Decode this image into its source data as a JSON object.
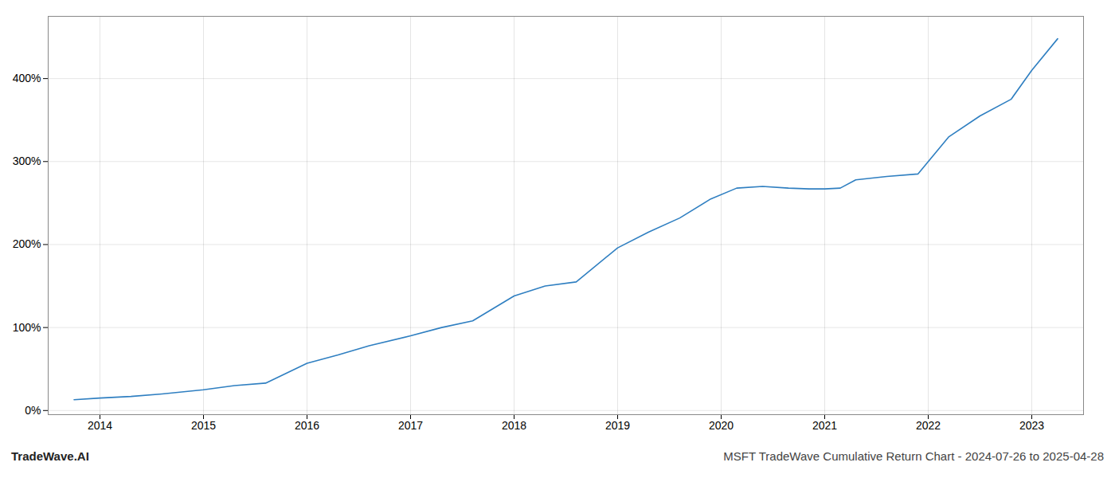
{
  "chart_data": {
    "type": "line",
    "title": "MSFT TradeWave Cumulative Return Chart - 2024-07-26 to 2025-04-28",
    "annotations": [
      "TradeWave.AI"
    ],
    "x": [
      2013.75,
      2014.0,
      2014.3,
      2014.6,
      2015.0,
      2015.3,
      2015.6,
      2016.0,
      2016.3,
      2016.6,
      2017.0,
      2017.3,
      2017.6,
      2018.0,
      2018.3,
      2018.6,
      2019.0,
      2019.3,
      2019.6,
      2019.9,
      2020.15,
      2020.4,
      2020.65,
      2020.85,
      2021.0,
      2021.15,
      2021.3,
      2021.6,
      2021.9,
      2022.2,
      2022.5,
      2022.8,
      2023.0,
      2023.25
    ],
    "values": [
      13,
      15,
      17,
      20,
      25,
      30,
      33,
      57,
      67,
      78,
      90,
      100,
      108,
      138,
      150,
      155,
      196,
      215,
      232,
      255,
      268,
      270,
      268,
      267,
      267,
      268,
      278,
      282,
      285,
      330,
      355,
      375,
      410,
      448
    ],
    "color": "#2f7fc1",
    "xlim": [
      2013.5,
      2023.5
    ],
    "xticks": [
      2014,
      2015,
      2016,
      2017,
      2018,
      2019,
      2020,
      2021,
      2022,
      2023
    ],
    "ylim": [
      -5,
      475
    ],
    "yticks": [
      {
        "value": 0,
        "label": "0%"
      },
      {
        "value": 100,
        "label": "100%"
      },
      {
        "value": 200,
        "label": "200%"
      },
      {
        "value": 300,
        "label": "300%"
      },
      {
        "value": 400,
        "label": "400%"
      }
    ],
    "grid": true
  }
}
